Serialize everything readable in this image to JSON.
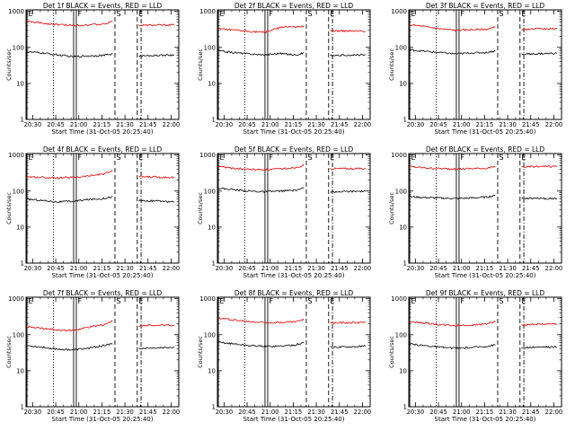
{
  "common": {
    "xlabel": "Start Time (31-Oct-05 20:25:40)",
    "ylabel": "Counts/sec",
    "x_ticks": [
      "20:30",
      "20:45",
      "21:00",
      "21:15",
      "21:30",
      "21:45",
      "22:00"
    ],
    "x_tick_minutes": [
      30,
      45,
      60,
      75,
      90,
      105,
      120
    ],
    "y_ticks": [
      "1",
      "10",
      "100",
      "1000"
    ],
    "y_tick_values": [
      1,
      10,
      100,
      1000
    ],
    "xlim_minutes": [
      25.7,
      125
    ],
    "ylim": [
      1,
      1100
    ],
    "y_scale": "log",
    "colors": {
      "events": "#000000",
      "lld": "#e00000"
    },
    "markers": [
      {
        "label": "E",
        "minute": 26.3,
        "style": "solid"
      },
      {
        "label": "",
        "minute": 43.5,
        "style": "dotted"
      },
      {
        "label": "F",
        "minute": 57.5,
        "style": "double"
      },
      {
        "label": "S",
        "minute": 83.5,
        "style": "dashed"
      },
      {
        "label": "E",
        "minute": 98.0,
        "style": "dashed"
      },
      {
        "label": "",
        "minute": 100.5,
        "style": "dashdot"
      }
    ]
  },
  "chart_data": [
    {
      "type": "line",
      "title": "Det 1f BLACK = Events, RED = LLD",
      "series": [
        {
          "segments": [
            {
              "x": [
                26,
                36,
                46,
                56,
                66,
                76,
                82
              ],
              "y": [
                530,
                470,
                430,
                410,
                420,
                440,
                520
              ]
            },
            {
              "x": [
                99,
                122
              ],
              "y": [
                410,
                420
              ]
            }
          ]
        },
        {
          "segments": [
            {
              "x": [
                26,
                36,
                46,
                56,
                66,
                76,
                82
              ],
              "y": [
                75,
                70,
                62,
                55,
                58,
                60,
                66
              ]
            },
            {
              "x": [
                99,
                122
              ],
              "y": [
                58,
                62
              ]
            }
          ]
        }
      ]
    },
    {
      "type": "line",
      "title": "Det 2f BLACK = Events, RED = LLD",
      "series": [
        {
          "segments": [
            {
              "x": [
                26,
                36,
                46,
                56,
                64,
                70,
                76,
                82
              ],
              "y": [
                330,
                300,
                280,
                260,
                330,
                380,
                360,
                380
              ]
            },
            {
              "x": [
                99,
                122
              ],
              "y": [
                290,
                280
              ]
            }
          ]
        },
        {
          "segments": [
            {
              "x": [
                26,
                36,
                46,
                56,
                66,
                76,
                82
              ],
              "y": [
                80,
                72,
                66,
                62,
                68,
                62,
                70
              ]
            },
            {
              "x": [
                99,
                122
              ],
              "y": [
                60,
                62
              ]
            }
          ]
        }
      ]
    },
    {
      "type": "line",
      "title": "Det 3f BLACK = Events, RED = LLD",
      "series": [
        {
          "segments": [
            {
              "x": [
                26,
                36,
                46,
                56,
                66,
                76,
                82
              ],
              "y": [
                430,
                380,
                330,
                300,
                310,
                320,
                360
              ]
            },
            {
              "x": [
                99,
                122
              ],
              "y": [
                320,
                330
              ]
            }
          ]
        },
        {
          "segments": [
            {
              "x": [
                26,
                36,
                46,
                56,
                66,
                76,
                82
              ],
              "y": [
                85,
                78,
                72,
                66,
                70,
                72,
                80
              ]
            },
            {
              "x": [
                99,
                122
              ],
              "y": [
                65,
                68
              ]
            }
          ]
        }
      ]
    },
    {
      "type": "line",
      "title": "Det 4f BLACK = Events, RED = LLD",
      "series": [
        {
          "segments": [
            {
              "x": [
                26,
                36,
                46,
                56,
                66,
                76,
                82
              ],
              "y": [
                250,
                240,
                230,
                240,
                260,
                300,
                360
              ]
            },
            {
              "x": [
                99,
                122
              ],
              "y": [
                250,
                240
              ]
            }
          ]
        },
        {
          "segments": [
            {
              "x": [
                26,
                36,
                46,
                56,
                66,
                76,
                82
              ],
              "y": [
                60,
                55,
                50,
                52,
                58,
                62,
                70
              ]
            },
            {
              "x": [
                99,
                122
              ],
              "y": [
                55,
                50
              ]
            }
          ]
        }
      ]
    },
    {
      "type": "line",
      "title": "Det 5f BLACK = Events, RED = LLD",
      "series": [
        {
          "segments": [
            {
              "x": [
                26,
                36,
                46,
                56,
                66,
                76,
                82
              ],
              "y": [
                480,
                430,
                400,
                390,
                410,
                450,
                520
              ]
            },
            {
              "x": [
                99,
                122
              ],
              "y": [
                420,
                420
              ]
            }
          ]
        },
        {
          "segments": [
            {
              "x": [
                26,
                36,
                46,
                56,
                66,
                76,
                82
              ],
              "y": [
                120,
                110,
                100,
                95,
                100,
                105,
                120
              ]
            },
            {
              "x": [
                99,
                122
              ],
              "y": [
                95,
                100
              ]
            }
          ]
        }
      ]
    },
    {
      "type": "line",
      "title": "Det 6f BLACK = Events, RED = LLD",
      "series": [
        {
          "segments": [
            {
              "x": [
                26,
                36,
                46,
                56,
                66,
                76,
                82
              ],
              "y": [
                480,
                440,
                420,
                410,
                420,
                430,
                470
              ]
            },
            {
              "x": [
                99,
                122
              ],
              "y": [
                470,
                480
              ]
            }
          ]
        },
        {
          "segments": [
            {
              "x": [
                26,
                36,
                46,
                56,
                66,
                76,
                82
              ],
              "y": [
                70,
                66,
                64,
                62,
                64,
                68,
                75
              ]
            },
            {
              "x": [
                99,
                122
              ],
              "y": [
                62,
                62
              ]
            }
          ]
        }
      ]
    },
    {
      "type": "line",
      "title": "Det 7f BLACK = Events, RED = LLD",
      "series": [
        {
          "segments": [
            {
              "x": [
                26,
                36,
                46,
                56,
                66,
                76,
                82
              ],
              "y": [
                170,
                150,
                135,
                130,
                160,
                190,
                240
              ]
            },
            {
              "x": [
                99,
                122
              ],
              "y": [
                180,
                185
              ]
            }
          ]
        },
        {
          "segments": [
            {
              "x": [
                26,
                36,
                46,
                56,
                66,
                76,
                82
              ],
              "y": [
                50,
                45,
                40,
                38,
                42,
                50,
                55
              ]
            },
            {
              "x": [
                99,
                122
              ],
              "y": [
                42,
                45
              ]
            }
          ]
        }
      ]
    },
    {
      "type": "line",
      "title": "Det 8f BLACK = Events, RED = LLD",
      "series": [
        {
          "segments": [
            {
              "x": [
                26,
                36,
                46,
                56,
                66,
                76,
                82
              ],
              "y": [
                290,
                260,
                230,
                220,
                220,
                230,
                260
              ]
            },
            {
              "x": [
                99,
                122
              ],
              "y": [
                210,
                220
              ]
            }
          ]
        },
        {
          "segments": [
            {
              "x": [
                26,
                36,
                46,
                56,
                66,
                76,
                82
              ],
              "y": [
                62,
                56,
                50,
                48,
                48,
                52,
                60
              ]
            },
            {
              "x": [
                99,
                122
              ],
              "y": [
                45,
                48
              ]
            }
          ]
        }
      ]
    },
    {
      "type": "line",
      "title": "Det 9f BLACK = Events, RED = LLD",
      "series": [
        {
          "segments": [
            {
              "x": [
                26,
                36,
                46,
                56,
                66,
                76,
                82
              ],
              "y": [
                230,
                210,
                190,
                180,
                185,
                200,
                230
              ]
            },
            {
              "x": [
                99,
                122
              ],
              "y": [
                190,
                200
              ]
            }
          ]
        },
        {
          "segments": [
            {
              "x": [
                26,
                36,
                46,
                56,
                66,
                76,
                82
              ],
              "y": [
                55,
                50,
                45,
                42,
                44,
                48,
                52
              ]
            },
            {
              "x": [
                99,
                122
              ],
              "y": [
                44,
                46
              ]
            }
          ]
        }
      ]
    }
  ]
}
